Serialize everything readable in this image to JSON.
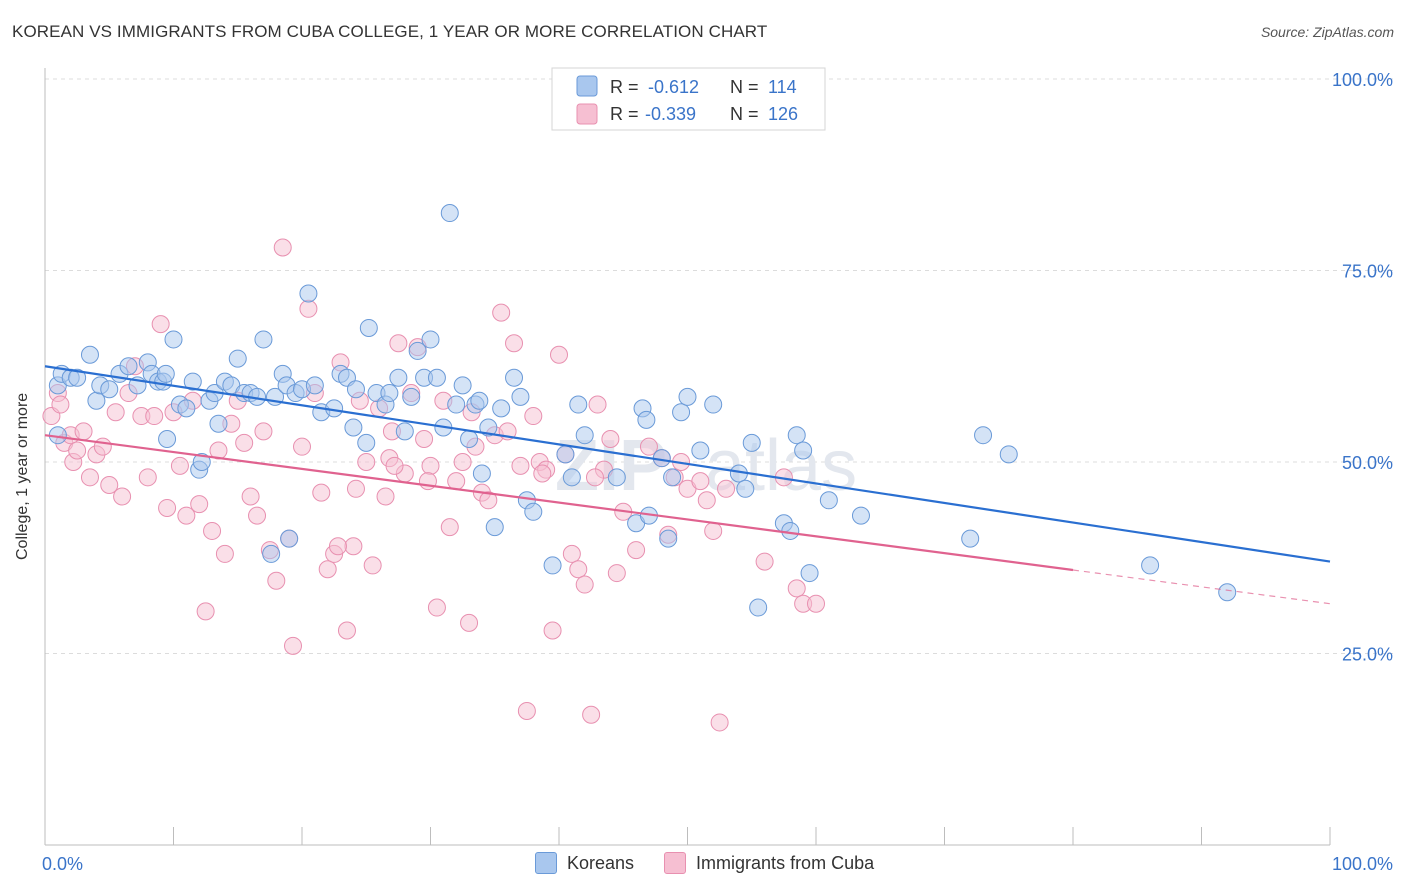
{
  "header": {
    "title": "KOREAN VS IMMIGRANTS FROM CUBA COLLEGE, 1 YEAR OR MORE CORRELATION CHART",
    "source": "Source: ZipAtlas.com"
  },
  "colors": {
    "blue_fill": "#a9c7ee",
    "blue_stroke": "#6a9ad8",
    "blue_line": "#2a6fd1",
    "pink_fill": "#f6bfd2",
    "pink_stroke": "#e890b0",
    "pink_line": "#e0628f",
    "axis_text": "#3a74c9",
    "grid": "#dcdcdc"
  },
  "legend": {
    "r_label": "R =",
    "n_label": "N =",
    "rows": [
      {
        "series": "Koreans",
        "r": "-0.612",
        "n": "114"
      },
      {
        "series": "Immigrants from Cuba",
        "r": "-0.339",
        "n": "126"
      }
    ]
  },
  "watermark": {
    "a": "ZIP",
    "b": "atlas"
  },
  "chart_data": {
    "type": "scatter",
    "title": "KOREAN VS IMMIGRANTS FROM CUBA COLLEGE, 1 YEAR OR MORE CORRELATION CHART",
    "xlabel": "",
    "ylabel": "College, 1 year or more",
    "xlim": [
      0,
      100
    ],
    "ylim": [
      0,
      100
    ],
    "x_tick_labels": [
      "0.0%",
      "100.0%"
    ],
    "y_tick_labels": [
      "25.0%",
      "50.0%",
      "75.0%",
      "100.0%"
    ],
    "y_ticks": [
      25,
      50,
      75,
      100
    ],
    "grid": true,
    "legend_position": "top-center",
    "series": [
      {
        "name": "Koreans",
        "color": "#a9c7ee",
        "trend": {
          "x": [
            0,
            100
          ],
          "y": [
            62.5,
            37.0
          ],
          "solid_until": 100
        },
        "points": [
          [
            1,
            53.5
          ],
          [
            1,
            60
          ],
          [
            1.3,
            61.5
          ],
          [
            2,
            61
          ],
          [
            2.5,
            61
          ],
          [
            3.5,
            64
          ],
          [
            4,
            58
          ],
          [
            4.3,
            60
          ],
          [
            5,
            59.5
          ],
          [
            5.8,
            61.5
          ],
          [
            6.5,
            62.5
          ],
          [
            7.2,
            60
          ],
          [
            8,
            63
          ],
          [
            8.3,
            61.5
          ],
          [
            8.8,
            60.5
          ],
          [
            9.2,
            60.5
          ],
          [
            9.4,
            61.5
          ],
          [
            9.5,
            53
          ],
          [
            10,
            66
          ],
          [
            10.5,
            57.5
          ],
          [
            11,
            57
          ],
          [
            11.5,
            60.5
          ],
          [
            12,
            49
          ],
          [
            12.2,
            50
          ],
          [
            12.8,
            58
          ],
          [
            13.2,
            59
          ],
          [
            13.5,
            55
          ],
          [
            14,
            60.5
          ],
          [
            14.5,
            60
          ],
          [
            15,
            63.5
          ],
          [
            15.5,
            59
          ],
          [
            16,
            59
          ],
          [
            16.5,
            58.5
          ],
          [
            17,
            66
          ],
          [
            17.6,
            38
          ],
          [
            17.9,
            58.5
          ],
          [
            18.5,
            61.5
          ],
          [
            18.8,
            60
          ],
          [
            19,
            40
          ],
          [
            19.5,
            59
          ],
          [
            20,
            59.5
          ],
          [
            20.5,
            72
          ],
          [
            21,
            60
          ],
          [
            21.5,
            56.5
          ],
          [
            22.5,
            57
          ],
          [
            23,
            61.5
          ],
          [
            23.5,
            61
          ],
          [
            24,
            54.5
          ],
          [
            24.2,
            59.5
          ],
          [
            25,
            52.5
          ],
          [
            25.2,
            67.5
          ],
          [
            25.8,
            59
          ],
          [
            26.5,
            57.5
          ],
          [
            26.8,
            59
          ],
          [
            27.5,
            61
          ],
          [
            28,
            54
          ],
          [
            28.5,
            58.5
          ],
          [
            29,
            64.5
          ],
          [
            29.5,
            61
          ],
          [
            30,
            66
          ],
          [
            30.5,
            61
          ],
          [
            31,
            54.5
          ],
          [
            31.5,
            82.5
          ],
          [
            32,
            57.5
          ],
          [
            32.5,
            60
          ],
          [
            33,
            53
          ],
          [
            33.5,
            57.5
          ],
          [
            33.8,
            58
          ],
          [
            34,
            48.5
          ],
          [
            34.5,
            54.5
          ],
          [
            35,
            41.5
          ],
          [
            35.5,
            57
          ],
          [
            36.5,
            61
          ],
          [
            37,
            58.5
          ],
          [
            37.5,
            45
          ],
          [
            38,
            43.5
          ],
          [
            39.5,
            36.5
          ],
          [
            40.5,
            51
          ],
          [
            41,
            48
          ],
          [
            41.5,
            57.5
          ],
          [
            42,
            53.5
          ],
          [
            44.5,
            48
          ],
          [
            46,
            42
          ],
          [
            46.5,
            57
          ],
          [
            46.8,
            55.5
          ],
          [
            47,
            43
          ],
          [
            48,
            50.5
          ],
          [
            48.5,
            40
          ],
          [
            48.8,
            48
          ],
          [
            49.5,
            56.5
          ],
          [
            50,
            58.5
          ],
          [
            51,
            51.5
          ],
          [
            52,
            57.5
          ],
          [
            54,
            48.5
          ],
          [
            54.5,
            46.5
          ],
          [
            55,
            52.5
          ],
          [
            55.5,
            31
          ],
          [
            57.5,
            42
          ],
          [
            58,
            41
          ],
          [
            58.5,
            53.5
          ],
          [
            59,
            51.5
          ],
          [
            59.5,
            35.5
          ],
          [
            61,
            45
          ],
          [
            63.5,
            43
          ],
          [
            72,
            40
          ],
          [
            73,
            53.5
          ],
          [
            75,
            51
          ],
          [
            86,
            36.5
          ],
          [
            92,
            33
          ]
        ]
      },
      {
        "name": "Immigrants from Cuba",
        "color": "#f6bfd2",
        "trend": {
          "x": [
            0,
            100
          ],
          "y": [
            53.5,
            31.5
          ],
          "solid_until": 80
        },
        "points": [
          [
            0.5,
            56
          ],
          [
            1,
            59
          ],
          [
            1.2,
            57.5
          ],
          [
            1.5,
            52.5
          ],
          [
            2,
            53.5
          ],
          [
            2.2,
            50
          ],
          [
            2.5,
            51.5
          ],
          [
            3,
            54
          ],
          [
            3.5,
            48
          ],
          [
            4,
            51
          ],
          [
            4.5,
            52
          ],
          [
            5,
            47
          ],
          [
            5.5,
            56.5
          ],
          [
            6,
            45.5
          ],
          [
            6.5,
            59
          ],
          [
            7,
            62.5
          ],
          [
            7.5,
            56
          ],
          [
            8,
            48
          ],
          [
            8.5,
            56
          ],
          [
            9,
            68
          ],
          [
            9.5,
            44
          ],
          [
            10,
            56.5
          ],
          [
            10.5,
            49.5
          ],
          [
            11,
            43
          ],
          [
            11.5,
            58
          ],
          [
            12,
            44.5
          ],
          [
            12.5,
            30.5
          ],
          [
            13,
            41
          ],
          [
            13.5,
            51.5
          ],
          [
            14,
            38
          ],
          [
            14.5,
            55
          ],
          [
            15,
            58
          ],
          [
            15.5,
            52.5
          ],
          [
            16,
            45.5
          ],
          [
            16.5,
            43
          ],
          [
            17,
            54
          ],
          [
            17.5,
            38.5
          ],
          [
            18,
            34.5
          ],
          [
            18.5,
            78
          ],
          [
            19,
            40
          ],
          [
            19.3,
            26
          ],
          [
            20,
            52
          ],
          [
            20.5,
            70
          ],
          [
            21,
            59
          ],
          [
            21.5,
            46
          ],
          [
            22,
            36
          ],
          [
            22.5,
            38
          ],
          [
            23,
            63
          ],
          [
            23.5,
            28
          ],
          [
            24,
            39
          ],
          [
            24.5,
            58
          ],
          [
            25,
            50
          ],
          [
            25.5,
            36.5
          ],
          [
            26,
            57
          ],
          [
            26.5,
            45.5
          ],
          [
            27,
            54
          ],
          [
            27.5,
            65.5
          ],
          [
            28,
            48.5
          ],
          [
            28.5,
            59
          ],
          [
            29,
            65
          ],
          [
            29.5,
            53
          ],
          [
            30,
            49.5
          ],
          [
            30.5,
            31
          ],
          [
            31,
            58
          ],
          [
            31.5,
            41.5
          ],
          [
            32,
            47.5
          ],
          [
            32.5,
            50
          ],
          [
            33,
            29
          ],
          [
            33.5,
            52
          ],
          [
            34,
            46
          ],
          [
            34.5,
            45
          ],
          [
            35,
            53.5
          ],
          [
            35.5,
            69.5
          ],
          [
            36,
            54
          ],
          [
            36.5,
            65.5
          ],
          [
            37,
            49.5
          ],
          [
            37.5,
            17.5
          ],
          [
            38,
            56
          ],
          [
            38.5,
            50
          ],
          [
            39,
            49
          ],
          [
            39.5,
            28
          ],
          [
            40,
            64
          ],
          [
            40.5,
            51
          ],
          [
            41,
            38
          ],
          [
            41.5,
            36
          ],
          [
            42,
            34
          ],
          [
            42.5,
            17
          ],
          [
            43,
            57.5
          ],
          [
            43.5,
            49
          ],
          [
            44,
            53
          ],
          [
            44.5,
            35.5
          ],
          [
            45,
            43.5
          ],
          [
            46,
            38.5
          ],
          [
            47,
            52
          ],
          [
            48,
            50.5
          ],
          [
            48.5,
            40.5
          ],
          [
            49,
            48
          ],
          [
            49.5,
            50
          ],
          [
            50,
            46.5
          ],
          [
            51,
            47.5
          ],
          [
            51.5,
            45
          ],
          [
            52,
            41
          ],
          [
            52.5,
            16
          ],
          [
            53,
            46.5
          ],
          [
            56,
            37
          ],
          [
            57.5,
            48
          ],
          [
            58.5,
            33.5
          ],
          [
            59,
            31.5
          ],
          [
            60,
            31.5
          ],
          [
            22.8,
            39
          ],
          [
            24.2,
            46.5
          ],
          [
            26.8,
            50.5
          ],
          [
            27.2,
            49.5
          ],
          [
            29.8,
            47.5
          ],
          [
            33.2,
            56.5
          ],
          [
            38.7,
            48.5
          ],
          [
            42.8,
            48
          ]
        ]
      }
    ]
  }
}
